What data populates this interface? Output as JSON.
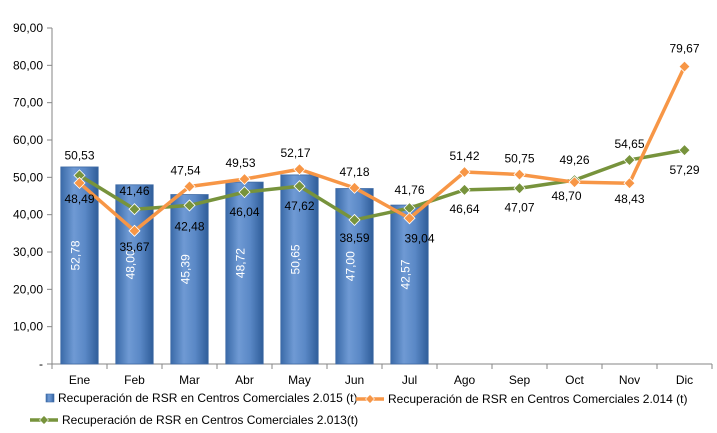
{
  "chart_data": {
    "type": "bar",
    "categories": [
      "Ene",
      "Feb",
      "Mar",
      "Abr",
      "May",
      "Jun",
      "Jul",
      "Ago",
      "Sep",
      "Oct",
      "Nov",
      "Dic"
    ],
    "ylim": [
      0,
      90
    ],
    "yticks": [
      "-",
      "10,00",
      "20,00",
      "30,00",
      "40,00",
      "50,00",
      "60,00",
      "70,00",
      "80,00",
      "90,00"
    ],
    "grid": false,
    "legend_position": "bottom",
    "series": [
      {
        "name": "Recuperación de RSR en Centros Comerciales 2.015 (t)",
        "type": "bar",
        "color": "#4F81BD",
        "values": [
          52.78,
          48.0,
          45.39,
          48.72,
          50.65,
          47.0,
          42.57,
          null,
          null,
          null,
          null,
          null
        ],
        "labels": [
          "52,78",
          "48,00",
          "45,39",
          "48,72",
          "50,65",
          "47,00",
          "42,57",
          "",
          "",
          "",
          "",
          ""
        ]
      },
      {
        "name": "Recuperación de RSR en Centros Comerciales 2.014 (t)",
        "type": "line",
        "color": "#F79646",
        "values": [
          48.49,
          35.67,
          47.54,
          49.53,
          52.17,
          47.18,
          39.04,
          51.42,
          50.75,
          48.7,
          48.43,
          79.67
        ],
        "labels": [
          "48,49",
          "35,67",
          "47,54",
          "49,53",
          "52,17",
          "47,18",
          "39,04",
          "51,42",
          "50,75",
          "48,70",
          "48,43",
          "79,67"
        ]
      },
      {
        "name": "Recuperación de RSR en Centros Comerciales 2.013(t)",
        "type": "line",
        "color": "#77933C",
        "values": [
          50.53,
          41.46,
          42.48,
          46.04,
          47.62,
          38.59,
          41.76,
          46.64,
          47.07,
          49.26,
          54.65,
          57.29
        ],
        "labels": [
          "50,53",
          "41,46",
          "42,48",
          "46,04",
          "47,62",
          "38,59",
          "41,76",
          "46,64",
          "47,07",
          "49,26",
          "54,65",
          "57,29"
        ]
      }
    ]
  }
}
